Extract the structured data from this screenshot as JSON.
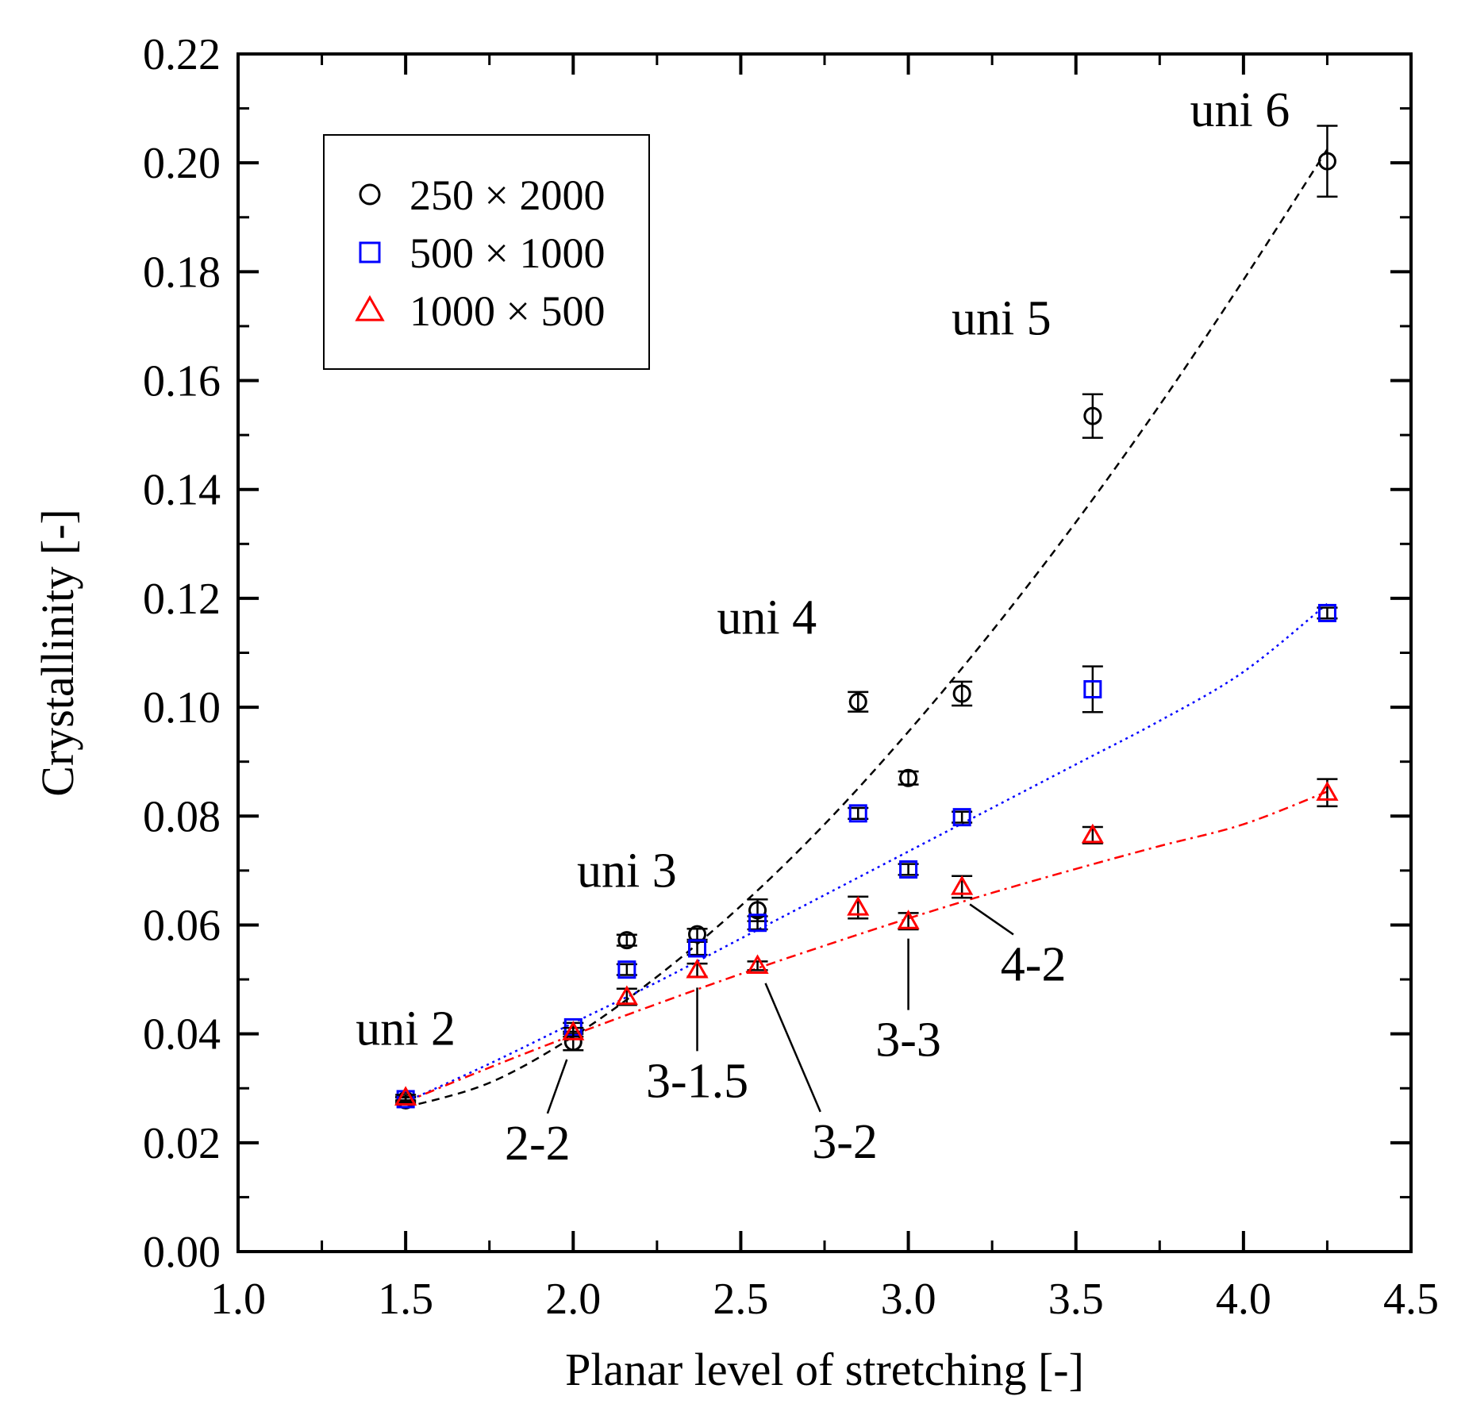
{
  "chart_data": {
    "type": "scatter",
    "title": "",
    "xlabel": "Planar level of stretching [-]",
    "ylabel": "Crystallinity [-]",
    "xlim": [
      1.0,
      4.5
    ],
    "ylim": [
      0.0,
      0.22
    ],
    "x_ticks": [
      "1.0",
      "1.5",
      "2.0",
      "2.5",
      "3.0",
      "3.5",
      "4.0",
      "4.5"
    ],
    "y_ticks": [
      "0.00",
      "0.02",
      "0.04",
      "0.06",
      "0.08",
      "0.10",
      "0.12",
      "0.14",
      "0.16",
      "0.18",
      "0.20",
      "0.22"
    ],
    "legend_position": "top-left",
    "series": [
      {
        "name": "250 × 2000",
        "marker": "circle",
        "color": "#000000",
        "points": [
          {
            "x": 1.5,
            "y": 0.0278,
            "err": 0.0005
          },
          {
            "x": 2.0,
            "y": 0.0385,
            "err": 0.0015
          },
          {
            "x": 2.16,
            "y": 0.0572,
            "err": 0.001
          },
          {
            "x": 2.37,
            "y": 0.0583,
            "err": 0.001
          },
          {
            "x": 2.55,
            "y": 0.0627,
            "err": 0.002
          },
          {
            "x": 2.85,
            "y": 0.101,
            "err": 0.0018
          },
          {
            "x": 3.0,
            "y": 0.087,
            "err": 0.0012
          },
          {
            "x": 3.16,
            "y": 0.1025,
            "err": 0.0022
          },
          {
            "x": 3.55,
            "y": 0.1535,
            "err": 0.004
          },
          {
            "x": 4.25,
            "y": 0.2003,
            "err": 0.0065
          }
        ],
        "fit": {
          "color": "#000000",
          "style": "dashed",
          "x": [
            1.5,
            1.75,
            2.0,
            2.25,
            2.5,
            2.75,
            3.0,
            3.25,
            3.5,
            3.75,
            4.0,
            4.25
          ],
          "y": [
            0.0265,
            0.031,
            0.0395,
            0.0505,
            0.0635,
            0.0785,
            0.0955,
            0.114,
            0.134,
            0.1555,
            0.1785,
            0.2025
          ]
        }
      },
      {
        "name": "500 × 1000",
        "marker": "square",
        "color": "#0000ff",
        "points": [
          {
            "x": 1.5,
            "y": 0.028,
            "err": 0.0004
          },
          {
            "x": 2.0,
            "y": 0.0412,
            "err": 0.0008
          },
          {
            "x": 2.16,
            "y": 0.0518,
            "err": 0.001
          },
          {
            "x": 2.37,
            "y": 0.0557,
            "err": 0.0012
          },
          {
            "x": 2.55,
            "y": 0.0604,
            "err": 0.0012
          },
          {
            "x": 2.85,
            "y": 0.0805,
            "err": 0.001
          },
          {
            "x": 3.0,
            "y": 0.0702,
            "err": 0.001
          },
          {
            "x": 3.16,
            "y": 0.0798,
            "err": 0.001
          },
          {
            "x": 3.55,
            "y": 0.1033,
            "err": 0.0042
          },
          {
            "x": 4.25,
            "y": 0.1173,
            "err": 0.001
          }
        ],
        "fit": {
          "color": "#0000ff",
          "style": "dotted",
          "x": [
            1.5,
            1.75,
            2.0,
            2.25,
            2.5,
            2.75,
            3.0,
            3.25,
            3.5,
            3.75,
            4.0,
            4.25
          ],
          "y": [
            0.0275,
            0.0345,
            0.042,
            0.0495,
            0.0575,
            0.0655,
            0.0735,
            0.0815,
            0.0895,
            0.0975,
            0.1065,
            0.119
          ]
        }
      },
      {
        "name": "1000 × 500",
        "marker": "triangle",
        "color": "#ff0000",
        "points": [
          {
            "x": 1.5,
            "y": 0.0283,
            "err": 0.0005
          },
          {
            "x": 2.0,
            "y": 0.0403,
            "err": 0.0008
          },
          {
            "x": 2.16,
            "y": 0.0468,
            "err": 0.0015
          },
          {
            "x": 2.37,
            "y": 0.0517,
            "err": 0.0012
          },
          {
            "x": 2.55,
            "y": 0.0525,
            "err": 0.0008
          },
          {
            "x": 2.85,
            "y": 0.0632,
            "err": 0.002
          },
          {
            "x": 3.0,
            "y": 0.0607,
            "err": 0.0015
          },
          {
            "x": 3.16,
            "y": 0.067,
            "err": 0.002
          },
          {
            "x": 3.55,
            "y": 0.0765,
            "err": 0.0015
          },
          {
            "x": 4.25,
            "y": 0.0843,
            "err": 0.0025
          }
        ],
        "fit": {
          "color": "#ff0000",
          "style": "dashdot",
          "x": [
            1.5,
            1.75,
            2.0,
            2.25,
            2.5,
            2.75,
            3.0,
            3.25,
            3.5,
            3.75,
            4.0,
            4.25
          ],
          "y": [
            0.0275,
            0.0338,
            0.0398,
            0.0455,
            0.051,
            0.0562,
            0.0612,
            0.0659,
            0.0703,
            0.0745,
            0.0785,
            0.0845
          ]
        }
      }
    ],
    "annotations": [
      {
        "text": "uni 2",
        "x": 1.5,
        "y": 0.0295,
        "pos": "above"
      },
      {
        "text": "uni 3",
        "x": 2.16,
        "y": 0.0585,
        "pos": "above"
      },
      {
        "text": "uni 4",
        "x": 2.85,
        "y": 0.103,
        "pos": "above-left"
      },
      {
        "text": "uni 5",
        "x": 3.55,
        "y": 0.158,
        "pos": "above-left"
      },
      {
        "text": "uni 6",
        "x": 4.25,
        "y": 0.205,
        "pos": "left"
      },
      {
        "text": "2-2",
        "x": 2.0,
        "y": 0.0385,
        "pos": "below",
        "leader": true
      },
      {
        "text": "3-1.5",
        "x": 2.37,
        "y": 0.0517,
        "pos": "below",
        "leader": true
      },
      {
        "text": "3-2",
        "x": 2.55,
        "y": 0.0525,
        "pos": "below-right",
        "leader": true
      },
      {
        "text": "3-3",
        "x": 3.0,
        "y": 0.0607,
        "pos": "below",
        "leader": true
      },
      {
        "text": "4-2",
        "x": 3.16,
        "y": 0.067,
        "pos": "below-right",
        "leader": true
      }
    ]
  }
}
